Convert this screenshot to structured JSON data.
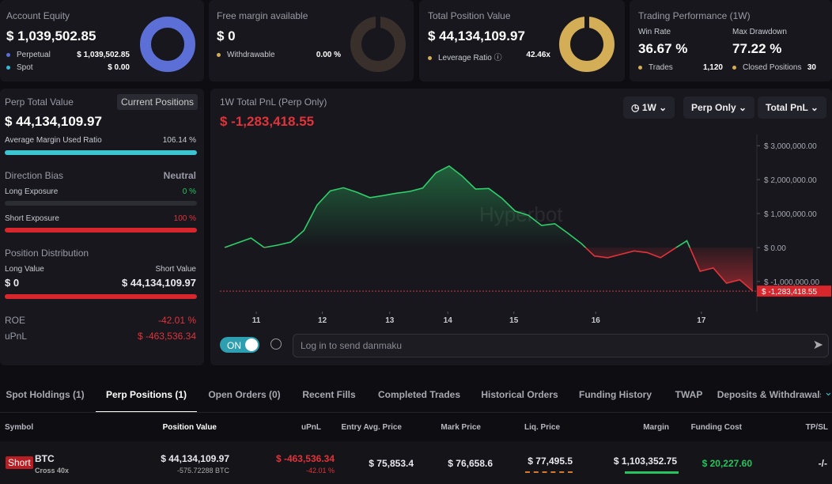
{
  "cards": [
    {
      "title": "Account Equity",
      "value": "$ 1,039,502.85",
      "rows": [
        [
          "Perpetual",
          "$ 1,039,502.85"
        ],
        [
          "Spot",
          "$ 0.00"
        ]
      ]
    },
    {
      "title": "Free margin available",
      "value": "$ 0",
      "rows": [
        [
          "Withdrawable",
          "0.00 %"
        ]
      ]
    },
    {
      "title": "Total Position Value",
      "value": "$ 44,134,109.97",
      "rows": [
        [
          "Leverage Ratio",
          "42.46x"
        ]
      ]
    }
  ],
  "performance": {
    "title": "Trading Performance (1W)",
    "win_rate_label": "Win Rate",
    "win_rate": "36.67 %",
    "drawdown_label": "Max Drawdown",
    "drawdown": "77.22 %",
    "trades_label": "Trades",
    "trades": "1,120",
    "closed_label": "Closed Positions",
    "closed": "30"
  },
  "summary": {
    "title": "Perp Total Value",
    "button": "Current Positions",
    "value": "$ 44,134,109.97",
    "margin_label": "Average Margin Used Ratio",
    "margin": "106.14 %",
    "bias_label": "Direction Bias",
    "bias": "Neutral",
    "long_label": "Long Exposure",
    "long": "0 %",
    "short_label": "Short Exposure",
    "short": "100 %",
    "dist_label": "Position Distribution",
    "long_value_label": "Long Value",
    "short_value_label": "Short Value",
    "long_value": "$ 0",
    "short_value": "$ 44,134,109.97",
    "roe_label": "ROE",
    "roe": "-42.01 %",
    "upnl_label": "uPnL",
    "upnl": "$ -463,536.34"
  },
  "chart_data": {
    "type": "line",
    "title": "1W Total PnL (Perp Only)",
    "subtitle": "$ -1,283,418.55",
    "last_value_label": "$ -1,283,418.55",
    "watermark": "Hyperbot",
    "controls": [
      "1W",
      "Perp Only",
      "Total PnL"
    ],
    "values": [
      0,
      140000,
      280000,
      0,
      70000,
      160000,
      500000,
      1250000,
      1670000,
      1760000,
      1630000,
      1470000,
      1530000,
      1600000,
      1650000,
      1750000,
      2200000,
      2400000,
      2100000,
      1720000,
      1740000,
      1450000,
      1070000,
      950000,
      650000,
      700000,
      420000,
      120000,
      -250000,
      -300000,
      -200000,
      -100000,
      -150000,
      -300000,
      -50000,
      200000,
      -700000,
      -600000,
      -1050000,
      -950000,
      -1283418.55
    ],
    "xticks": [
      {
        "value": 2.4,
        "label": "11"
      },
      {
        "value": 7.4,
        "label": "12"
      },
      {
        "value": 12.5,
        "label": "13"
      },
      {
        "value": 16.9,
        "label": "14"
      },
      {
        "value": 21.9,
        "label": "15"
      },
      {
        "value": 28.1,
        "label": "16"
      },
      {
        "value": 36.1,
        "label": "17"
      }
    ],
    "ylim": [
      -1840000,
      3330000
    ],
    "yticks": [
      {
        "value": -1000000,
        "label": "$ -1,000,000.00"
      },
      {
        "value": 0,
        "label": "$ 0.00"
      },
      {
        "value": 1000000,
        "label": "$ 1,000,000.00"
      },
      {
        "value": 2000000,
        "label": "$ 2,000,000.00"
      },
      {
        "value": 3000000,
        "label": "$ 3,000,000.00"
      }
    ],
    "positive_color": "#2fcf6a",
    "negative_color": "#e0333a"
  },
  "danmaku": {
    "toggle": "ON",
    "placeholder": "Log in to send danmaku"
  },
  "tabs": [
    "Spot Holdings (1)",
    "Perp Positions (1)",
    "Open Orders (0)",
    "Recent Fills",
    "Completed Trades",
    "Historical Orders",
    "Funding History",
    "TWAP",
    "Deposits & Withdrawals"
  ],
  "active_tab": 1,
  "table": {
    "headers": [
      "Symbol",
      "Position Value",
      "uPnL",
      "Entry Avg. Price",
      "Mark Price",
      "Liq. Price",
      "Margin",
      "Funding Cost",
      "TP/SL"
    ],
    "row": {
      "side": "Short",
      "symbol": "BTC",
      "mode": "Cross 40x",
      "position_value": "$ 44,134,109.97",
      "position_size": "-575.72288 BTC",
      "upnl": "$ -463,536.34",
      "upnl_pct": "-42.01 %",
      "entry": "$ 75,853.4",
      "mark": "$ 76,658.6",
      "liq": "$ 77,495.5",
      "margin": "$ 1,103,352.75",
      "funding": "$ 20,227.60",
      "tpsl": "-/-"
    }
  }
}
